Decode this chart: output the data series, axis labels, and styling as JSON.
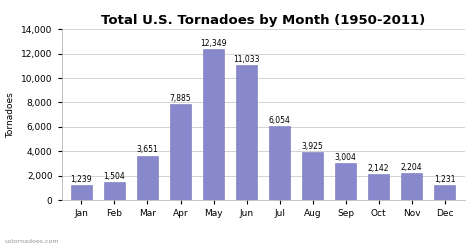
{
  "title": "Total U.S. Tornadoes by Month (1950-2011)",
  "categories": [
    "Jan",
    "Feb",
    "Mar",
    "Apr",
    "May",
    "Jun",
    "Jul",
    "Aug",
    "Sep",
    "Oct",
    "Nov",
    "Dec"
  ],
  "values": [
    1239,
    1504,
    3651,
    7885,
    12349,
    11033,
    6054,
    3925,
    3004,
    2142,
    2204,
    1231
  ],
  "bar_color": "#8888cc",
  "bar_edge_color": "#7777bb",
  "ylabel": "Tornadoes",
  "ylim": [
    0,
    14000
  ],
  "yticks": [
    0,
    2000,
    4000,
    6000,
    8000,
    10000,
    12000,
    14000
  ],
  "background_color": "#ffffff",
  "grid_color": "#cccccc",
  "watermark": "ustornadoes.com",
  "title_fontsize": 9.5,
  "label_fontsize": 6.5,
  "tick_fontsize": 6.5,
  "value_fontsize": 5.5
}
